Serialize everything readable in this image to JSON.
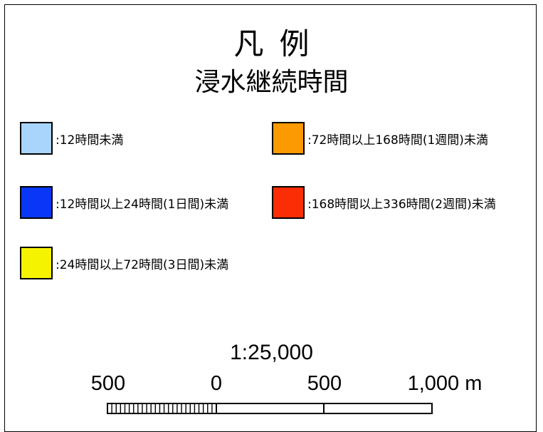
{
  "legend": {
    "title": "凡例",
    "subtitle": "浸水継続時間",
    "items": [
      {
        "label": "12時間未満",
        "color": "#a9d4fb"
      },
      {
        "label": "12時間以上24時間(1日間)未満",
        "color": "#0a37f7"
      },
      {
        "label": "24時間以上72時間(3日間)未満",
        "color": "#f5f300"
      },
      {
        "label": "72時間以上168時間(1週間)未満",
        "color": "#fb9a03"
      },
      {
        "label": "168時間以上336時間(2週間)未満",
        "color": "#fb2d05"
      }
    ]
  },
  "scale": {
    "ratio": "1:25,000",
    "ticks": [
      "500",
      "0",
      "500",
      "1,000 m"
    ]
  }
}
